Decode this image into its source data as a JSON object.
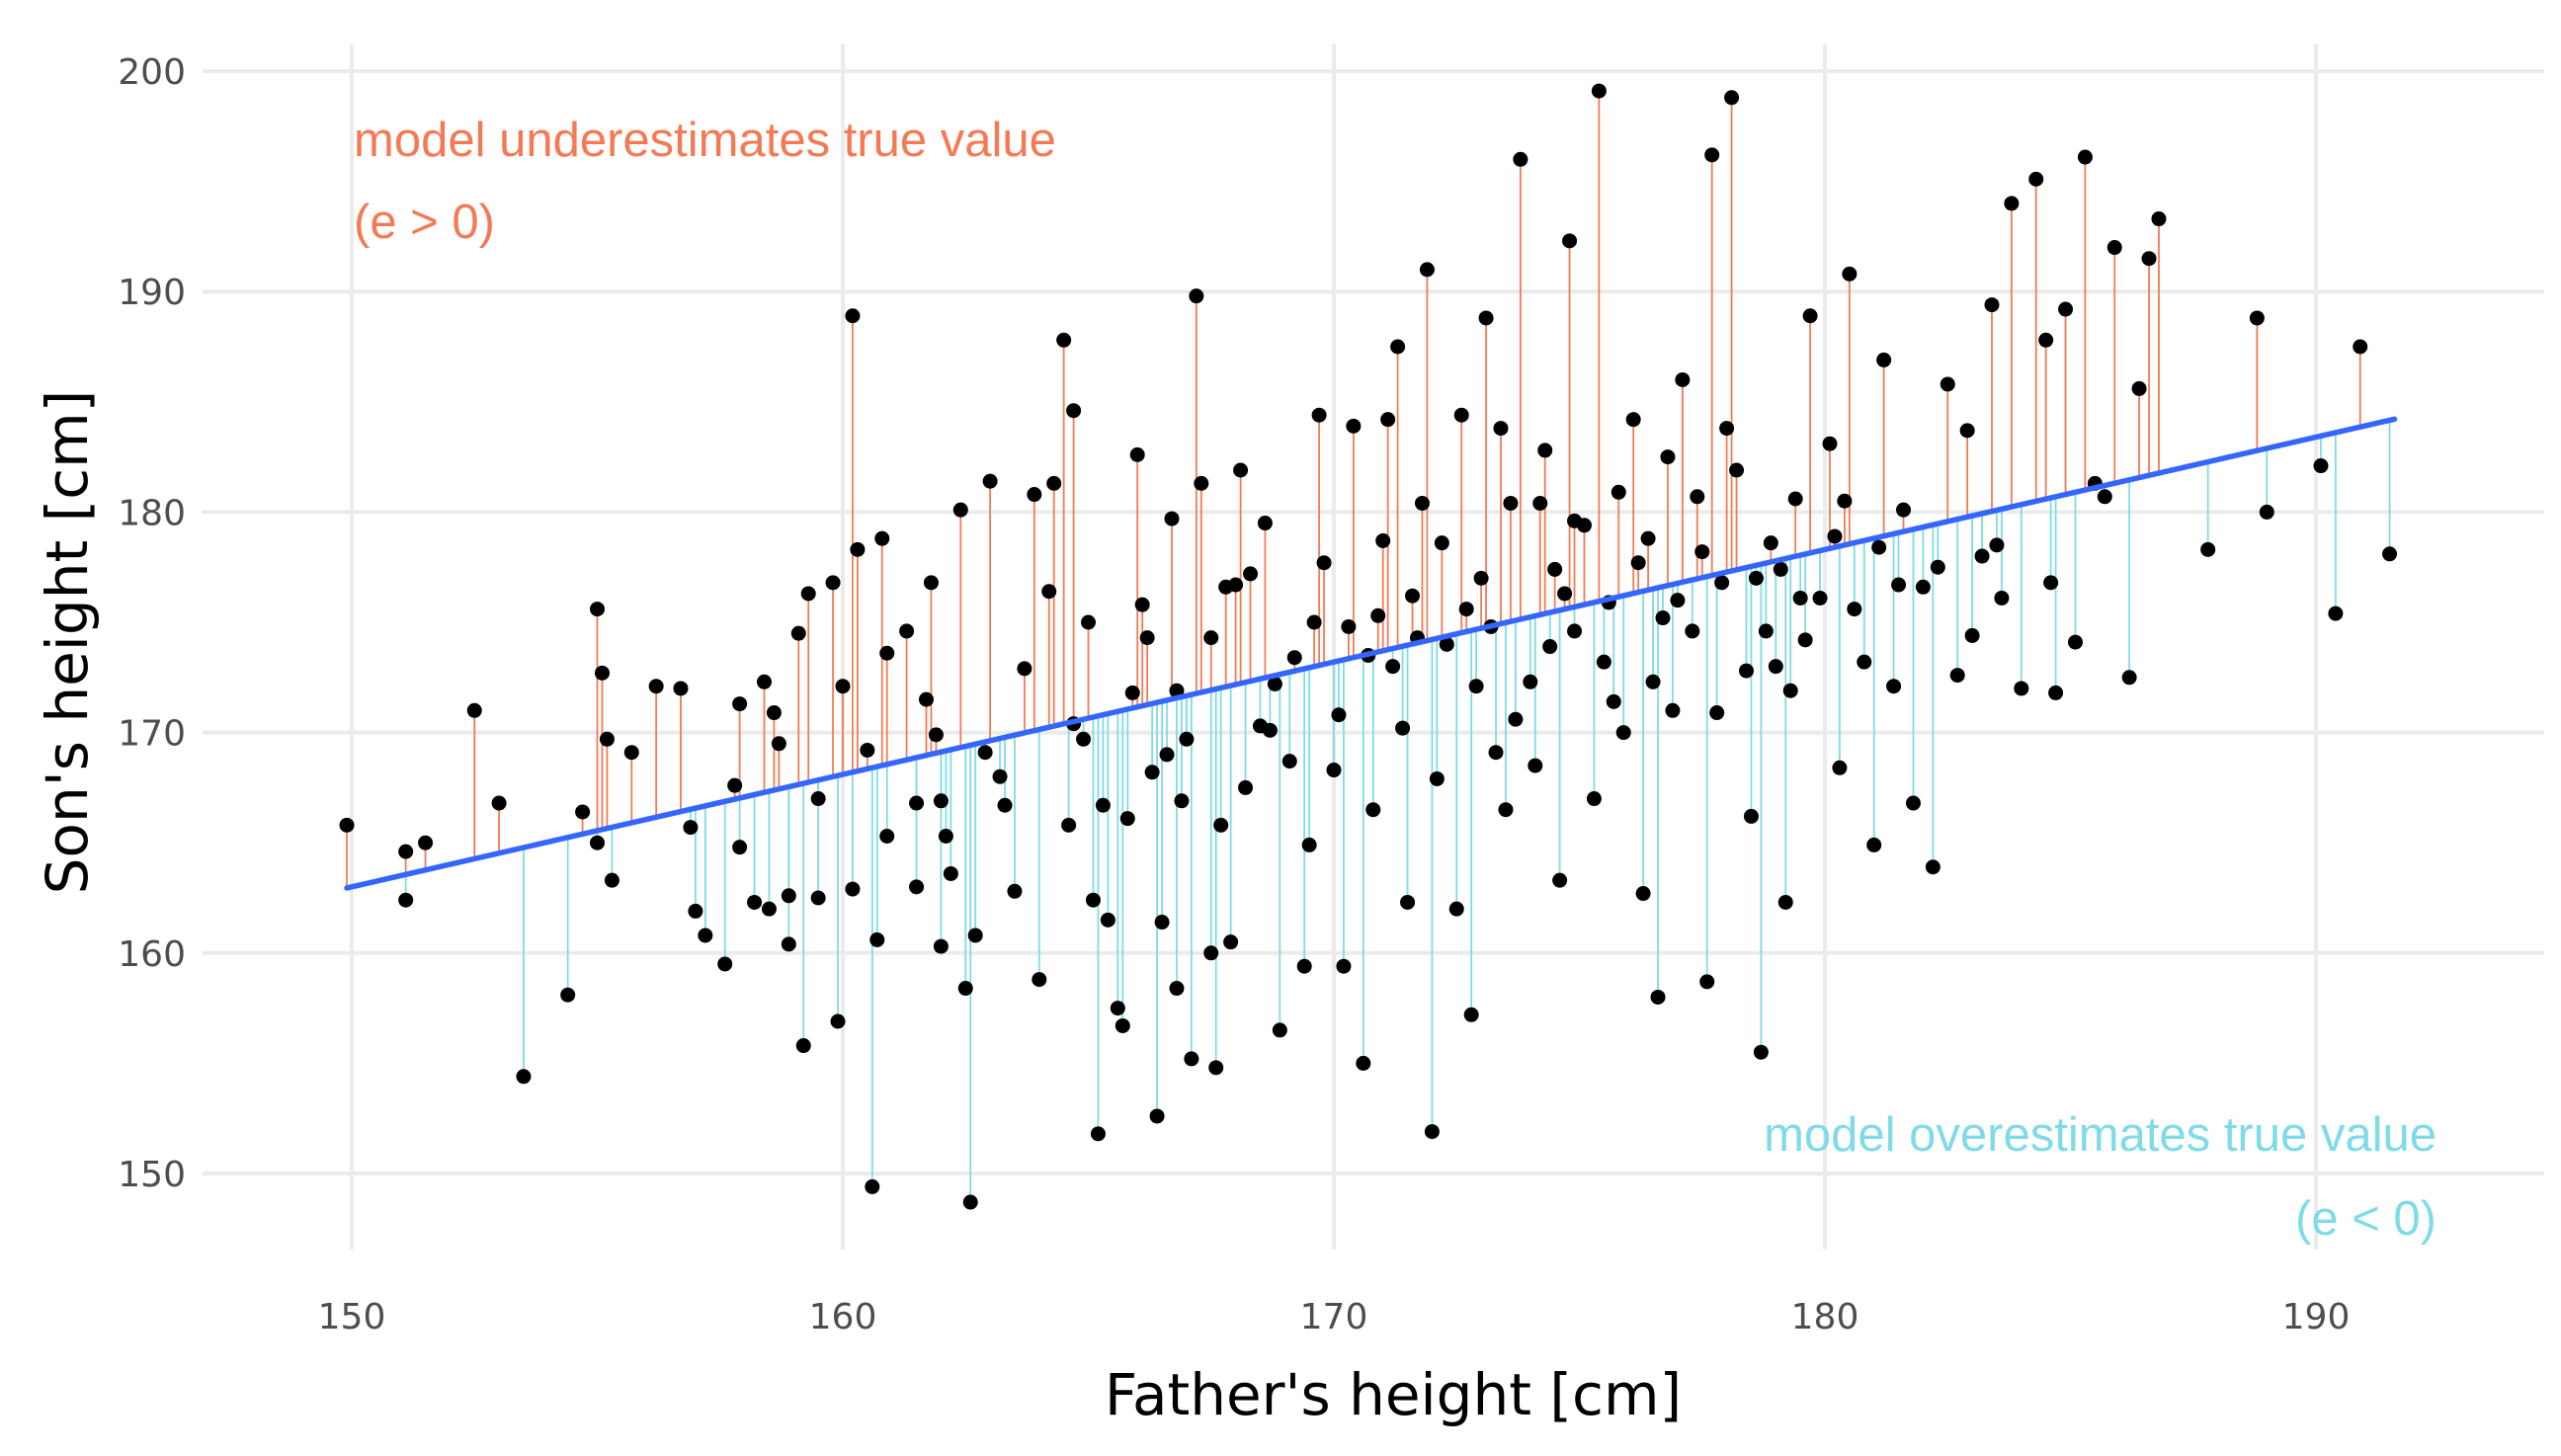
{
  "colors": {
    "positive_residual": "#f47a55",
    "negative_residual": "#7fdbe6",
    "regression_line": "#3366ff",
    "points": "#000000",
    "grid": "#ebebeb",
    "background": "#ffffff"
  },
  "chart_data": {
    "type": "scatter",
    "title": "",
    "xlabel": "Father's height [cm]",
    "ylabel": "Son's height [cm]",
    "xlim": [
      148,
      194.5
    ],
    "ylim": [
      146.5,
      202.5
    ],
    "xticks": [
      150,
      160,
      170,
      180,
      190
    ],
    "yticks": [
      150,
      160,
      170,
      180,
      190,
      200
    ],
    "grid": true,
    "annotations": [
      {
        "id": "under_1",
        "text": "model underestimates true value",
        "color": "#f47a55",
        "position": "top-left"
      },
      {
        "id": "under_2",
        "text": "(e > 0)",
        "color": "#f47a55",
        "position": "top-left"
      },
      {
        "id": "over_1",
        "text": "model overestimates true value",
        "color": "#7fdbe6",
        "position": "bottom-right"
      },
      {
        "id": "over_2",
        "text": "(e < 0)",
        "color": "#7fdbe6",
        "position": "bottom-right"
      }
    ],
    "regression_line": {
      "intercept": 86.5,
      "slope": 0.51
    },
    "series": [
      {
        "points": [
          [
            149.9,
            165.8
          ],
          [
            151.1,
            162.4
          ],
          [
            151.1,
            164.6
          ],
          [
            151.5,
            165.0
          ],
          [
            152.5,
            171.0
          ],
          [
            153.0,
            166.8
          ],
          [
            153.5,
            154.4
          ],
          [
            154.4,
            158.1
          ],
          [
            154.7,
            166.4
          ],
          [
            155.0,
            175.6
          ],
          [
            155.0,
            165.0
          ],
          [
            155.1,
            172.7
          ],
          [
            155.2,
            169.7
          ],
          [
            155.3,
            163.3
          ],
          [
            155.7,
            169.1
          ],
          [
            156.2,
            172.1
          ],
          [
            156.7,
            172.0
          ],
          [
            156.9,
            165.7
          ],
          [
            157.0,
            161.9
          ],
          [
            157.2,
            160.8
          ],
          [
            157.6,
            159.5
          ],
          [
            157.8,
            167.6
          ],
          [
            157.9,
            164.8
          ],
          [
            157.9,
            171.3
          ],
          [
            158.2,
            162.3
          ],
          [
            158.4,
            172.3
          ],
          [
            158.5,
            162.0
          ],
          [
            158.6,
            170.9
          ],
          [
            158.7,
            169.5
          ],
          [
            158.9,
            160.4
          ],
          [
            158.9,
            162.6
          ],
          [
            159.1,
            174.5
          ],
          [
            159.2,
            155.8
          ],
          [
            159.3,
            176.3
          ],
          [
            159.5,
            162.5
          ],
          [
            159.5,
            167.0
          ],
          [
            159.8,
            176.8
          ],
          [
            159.9,
            156.9
          ],
          [
            160.0,
            172.1
          ],
          [
            160.2,
            162.9
          ],
          [
            160.2,
            188.9
          ],
          [
            160.3,
            178.3
          ],
          [
            160.5,
            169.2
          ],
          [
            160.6,
            149.4
          ],
          [
            160.7,
            160.6
          ],
          [
            160.8,
            178.8
          ],
          [
            160.9,
            165.3
          ],
          [
            161.3,
            174.6
          ],
          [
            161.5,
            166.8
          ],
          [
            161.5,
            163.0
          ],
          [
            161.7,
            171.5
          ],
          [
            161.8,
            176.8
          ],
          [
            162.0,
            160.3
          ],
          [
            162.1,
            165.3
          ],
          [
            162.2,
            163.6
          ],
          [
            162.4,
            180.1
          ],
          [
            162.5,
            158.4
          ],
          [
            162.6,
            148.7
          ],
          [
            162.7,
            160.8
          ],
          [
            162.9,
            169.1
          ],
          [
            163.0,
            181.4
          ],
          [
            163.2,
            168.0
          ],
          [
            163.5,
            162.8
          ],
          [
            163.9,
            180.8
          ],
          [
            164.0,
            158.8
          ],
          [
            164.3,
            181.3
          ],
          [
            164.5,
            187.8
          ],
          [
            164.6,
            165.8
          ],
          [
            164.7,
            184.6
          ],
          [
            164.7,
            170.4
          ],
          [
            164.9,
            169.7
          ],
          [
            165.1,
            162.4
          ],
          [
            165.2,
            151.8
          ],
          [
            165.3,
            166.7
          ],
          [
            165.4,
            161.5
          ],
          [
            165.6,
            157.5
          ],
          [
            165.7,
            156.7
          ],
          [
            165.8,
            166.1
          ],
          [
            166.0,
            182.6
          ],
          [
            166.1,
            175.8
          ],
          [
            166.3,
            168.2
          ],
          [
            166.4,
            152.6
          ],
          [
            166.5,
            161.4
          ],
          [
            166.7,
            179.7
          ],
          [
            166.8,
            158.4
          ],
          [
            166.9,
            166.9
          ],
          [
            167.1,
            155.2
          ],
          [
            167.2,
            189.8
          ],
          [
            167.3,
            181.3
          ],
          [
            167.5,
            160.0
          ],
          [
            167.5,
            174.3
          ],
          [
            167.6,
            154.8
          ],
          [
            167.8,
            176.6
          ],
          [
            167.9,
            160.5
          ],
          [
            168.1,
            181.9
          ],
          [
            168.2,
            167.5
          ],
          [
            168.5,
            170.3
          ],
          [
            168.6,
            179.5
          ],
          [
            168.8,
            172.2
          ],
          [
            168.9,
            156.5
          ],
          [
            169.2,
            173.4
          ],
          [
            169.4,
            159.4
          ],
          [
            169.5,
            164.9
          ],
          [
            169.7,
            184.4
          ],
          [
            169.8,
            177.7
          ],
          [
            170.1,
            170.8
          ],
          [
            170.2,
            159.4
          ],
          [
            170.4,
            183.9
          ],
          [
            170.6,
            155.0
          ],
          [
            170.8,
            166.5
          ],
          [
            170.9,
            175.3
          ],
          [
            171.1,
            184.2
          ],
          [
            171.2,
            173.0
          ],
          [
            171.3,
            187.5
          ],
          [
            171.5,
            162.3
          ],
          [
            171.6,
            176.2
          ],
          [
            171.8,
            180.4
          ],
          [
            171.9,
            191.0
          ],
          [
            172.0,
            151.9
          ],
          [
            172.1,
            167.9
          ],
          [
            172.3,
            174.0
          ],
          [
            172.5,
            162.0
          ],
          [
            172.6,
            184.4
          ],
          [
            172.8,
            157.2
          ],
          [
            173.0,
            177.0
          ],
          [
            173.1,
            188.8
          ],
          [
            173.3,
            169.1
          ],
          [
            173.5,
            166.5
          ],
          [
            173.6,
            180.4
          ],
          [
            173.8,
            196.0
          ],
          [
            174.0,
            172.3
          ],
          [
            174.1,
            168.5
          ],
          [
            174.3,
            182.8
          ],
          [
            174.5,
            177.4
          ],
          [
            174.6,
            163.3
          ],
          [
            174.8,
            192.3
          ],
          [
            174.9,
            174.6
          ],
          [
            175.1,
            179.4
          ],
          [
            175.3,
            167.0
          ],
          [
            175.4,
            199.1
          ],
          [
            175.6,
            175.9
          ],
          [
            175.8,
            180.9
          ],
          [
            175.9,
            170.0
          ],
          [
            176.1,
            184.2
          ],
          [
            176.3,
            162.7
          ],
          [
            176.4,
            178.8
          ],
          [
            176.6,
            158.0
          ],
          [
            176.8,
            182.5
          ],
          [
            176.9,
            171.0
          ],
          [
            177.1,
            186.0
          ],
          [
            177.3,
            174.6
          ],
          [
            177.4,
            180.7
          ],
          [
            177.6,
            158.7
          ],
          [
            177.7,
            196.2
          ],
          [
            177.9,
            176.8
          ],
          [
            178.1,
            198.8
          ],
          [
            178.2,
            181.9
          ],
          [
            178.4,
            172.8
          ],
          [
            178.5,
            166.2
          ],
          [
            178.7,
            155.5
          ],
          [
            178.9,
            178.6
          ],
          [
            179.0,
            173.0
          ],
          [
            179.2,
            162.3
          ],
          [
            179.4,
            180.6
          ],
          [
            179.6,
            174.2
          ],
          [
            179.7,
            188.9
          ],
          [
            179.9,
            176.1
          ],
          [
            180.1,
            183.1
          ],
          [
            180.3,
            168.4
          ],
          [
            180.5,
            190.8
          ],
          [
            180.6,
            175.6
          ],
          [
            180.8,
            173.2
          ],
          [
            181.0,
            164.9
          ],
          [
            181.2,
            186.9
          ],
          [
            181.4,
            172.1
          ],
          [
            181.6,
            180.1
          ],
          [
            181.8,
            166.8
          ],
          [
            182.0,
            176.6
          ],
          [
            182.2,
            163.9
          ],
          [
            182.5,
            185.8
          ],
          [
            182.7,
            172.6
          ],
          [
            182.9,
            183.7
          ],
          [
            183.2,
            178.0
          ],
          [
            183.4,
            189.4
          ],
          [
            183.6,
            176.1
          ],
          [
            183.8,
            194.0
          ],
          [
            184.0,
            172.0
          ],
          [
            184.3,
            195.1
          ],
          [
            184.5,
            187.8
          ],
          [
            184.7,
            171.8
          ],
          [
            184.9,
            189.2
          ],
          [
            185.1,
            174.1
          ],
          [
            185.3,
            196.1
          ],
          [
            185.5,
            181.3
          ],
          [
            185.7,
            180.7
          ],
          [
            185.9,
            192.0
          ],
          [
            186.2,
            172.5
          ],
          [
            186.4,
            185.6
          ],
          [
            186.6,
            191.5
          ],
          [
            186.8,
            193.3
          ],
          [
            187.8,
            178.3
          ],
          [
            188.8,
            188.8
          ],
          [
            189.0,
            180.0
          ],
          [
            190.1,
            182.1
          ],
          [
            190.4,
            175.4
          ],
          [
            190.9,
            187.5
          ],
          [
            191.5,
            178.1
          ],
          [
            162.0,
            166.9
          ],
          [
            163.7,
            172.9
          ],
          [
            164.2,
            176.4
          ],
          [
            166.8,
            171.9
          ],
          [
            167.7,
            165.8
          ],
          [
            168.3,
            177.2
          ],
          [
            169.1,
            168.7
          ],
          [
            170.3,
            174.8
          ],
          [
            171.4,
            170.2
          ],
          [
            172.2,
            178.6
          ],
          [
            172.9,
            172.1
          ],
          [
            173.4,
            183.8
          ],
          [
            174.4,
            173.9
          ],
          [
            174.9,
            179.6
          ],
          [
            175.7,
            171.4
          ],
          [
            176.2,
            177.7
          ],
          [
            177.0,
            176.0
          ],
          [
            178.0,
            183.8
          ],
          [
            178.8,
            174.6
          ],
          [
            179.5,
            176.1
          ],
          [
            180.2,
            178.9
          ],
          [
            181.1,
            178.4
          ],
          [
            182.3,
            177.5
          ],
          [
            183.0,
            174.4
          ],
          [
            160.9,
            173.6
          ],
          [
            161.9,
            169.9
          ],
          [
            163.3,
            166.7
          ],
          [
            165.9,
            171.8
          ],
          [
            166.2,
            174.3
          ],
          [
            167.0,
            169.7
          ],
          [
            168.7,
            170.1
          ],
          [
            169.6,
            175.0
          ],
          [
            170.7,
            173.5
          ],
          [
            171.0,
            178.7
          ],
          [
            172.7,
            175.6
          ],
          [
            173.7,
            170.6
          ],
          [
            174.7,
            176.3
          ],
          [
            175.5,
            173.2
          ],
          [
            176.5,
            172.3
          ],
          [
            177.5,
            178.2
          ],
          [
            178.6,
            177.0
          ],
          [
            179.3,
            171.9
          ],
          [
            180.4,
            180.5
          ],
          [
            181.5,
            176.7
          ],
          [
            183.5,
            178.5
          ],
          [
            184.6,
            176.8
          ],
          [
            165.0,
            175.0
          ],
          [
            166.6,
            169.0
          ],
          [
            168.0,
            176.7
          ],
          [
            170.0,
            168.3
          ],
          [
            171.7,
            174.3
          ],
          [
            173.2,
            174.8
          ],
          [
            174.2,
            180.4
          ],
          [
            176.7,
            175.2
          ],
          [
            177.8,
            170.9
          ],
          [
            179.1,
            177.4
          ]
        ]
      }
    ]
  }
}
